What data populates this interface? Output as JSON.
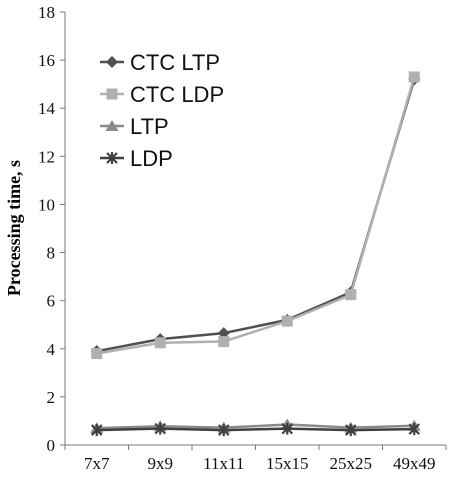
{
  "chart_data": {
    "type": "line",
    "title": "",
    "xlabel": "",
    "ylabel": "Processing time, s",
    "categories": [
      "7x7",
      "9x9",
      "11x11",
      "15x15",
      "25x25",
      "49x49"
    ],
    "ylim": [
      0,
      18
    ],
    "yticks": [
      0,
      2,
      4,
      6,
      8,
      10,
      12,
      14,
      16,
      18
    ],
    "grid": false,
    "legend_position": "top-left",
    "series": [
      {
        "name": "CTC LTP",
        "marker": "diamond",
        "color": "#505050",
        "values": [
          3.9,
          4.4,
          4.65,
          5.2,
          6.35,
          15.2
        ]
      },
      {
        "name": "CTC LDP",
        "marker": "square",
        "color": "#b0b0b0",
        "values": [
          3.8,
          4.25,
          4.3,
          5.15,
          6.25,
          15.3
        ]
      },
      {
        "name": "LTP",
        "marker": "triangle",
        "color": "#8a8a8a",
        "values": [
          0.7,
          0.78,
          0.72,
          0.85,
          0.72,
          0.8
        ]
      },
      {
        "name": "LDP",
        "marker": "star",
        "color": "#404040",
        "values": [
          0.62,
          0.68,
          0.62,
          0.68,
          0.62,
          0.66
        ]
      }
    ]
  }
}
